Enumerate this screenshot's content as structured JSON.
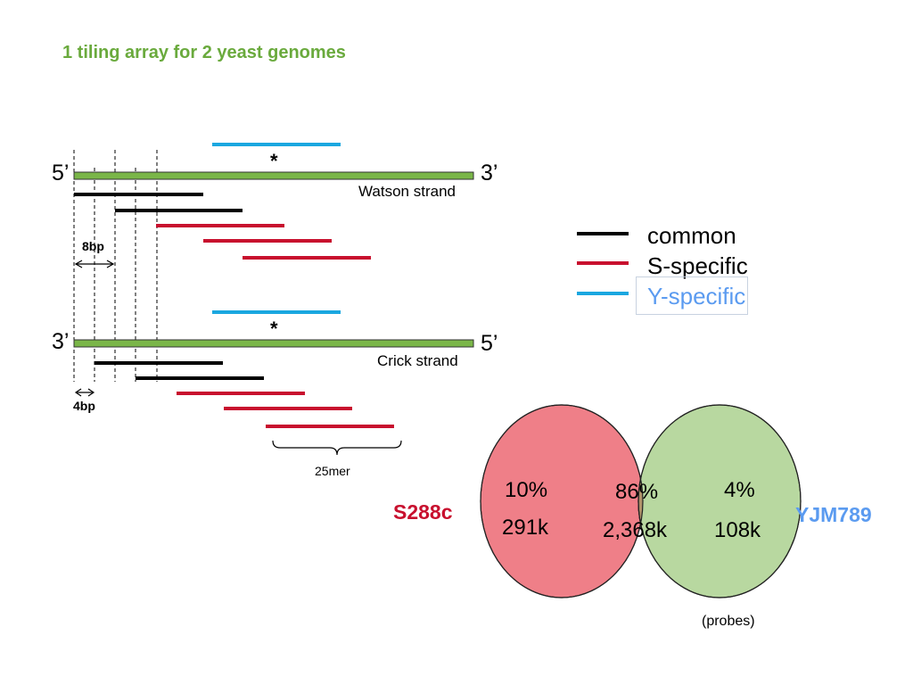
{
  "title": "1 tiling array for 2 yeast genomes",
  "watson": {
    "left_end": "5’",
    "right_end": "3’",
    "label": "Watson strand",
    "marker": "*"
  },
  "crick": {
    "left_end": "3’",
    "right_end": "5’",
    "label": "Crick strand",
    "marker": "*"
  },
  "annotations": {
    "offset_8bp": "8bp",
    "offset_4bp": "4bp",
    "probe_length": "25mer"
  },
  "legend": [
    {
      "label": "common",
      "color": "#000000"
    },
    {
      "label": "S-specific",
      "color": "#c8102e"
    },
    {
      "label": "Y-specific",
      "color": "#1aa7e0"
    }
  ],
  "colors": {
    "strand": "#7ab648",
    "common": "#000000",
    "s_specific": "#c8102e",
    "y_specific": "#1aa7e0",
    "venn_s": "#ef7f88",
    "venn_y": "#b8d8a0",
    "venn_overlap": "#b0936a",
    "label_s": "#c8102e",
    "label_y": "#5b9bf0"
  },
  "venn": {
    "left": {
      "name": "S288c",
      "percent": "10%",
      "count": "291k"
    },
    "overlap": {
      "percent": "86%",
      "count": "2,368k"
    },
    "right": {
      "name": "YJM789",
      "percent": "4%",
      "count": "108k"
    },
    "unit_note": "(probes)"
  }
}
